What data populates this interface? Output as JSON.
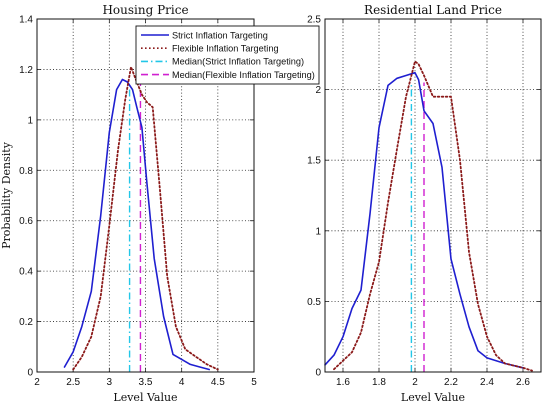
{
  "chart_data": [
    {
      "type": "line",
      "title": "Housing Price",
      "xlabel": "Level Value",
      "ylabel": "Probability Density",
      "xlim": [
        2,
        5
      ],
      "ylim": [
        0,
        1.4
      ],
      "xticks": [
        "2",
        "2.5",
        "3",
        "3.5",
        "4",
        "4.5",
        "5"
      ],
      "yticks": [
        "0",
        "0.2",
        "0.4",
        "0.6",
        "0.8",
        "1",
        "1.2",
        "1.4"
      ],
      "grid": "dotted",
      "legend_position": "top-right",
      "series": [
        {
          "name": "Strict Inflation Targeting",
          "color": "#1f1fd0",
          "style": "solid",
          "x": [
            2.38,
            2.5,
            2.62,
            2.75,
            2.88,
            3.0,
            3.1,
            3.18,
            3.25,
            3.32,
            3.38,
            3.45,
            3.52,
            3.62,
            3.75,
            3.88,
            4.0,
            4.12,
            4.25,
            4.38
          ],
          "y": [
            0.02,
            0.08,
            0.18,
            0.32,
            0.62,
            0.95,
            1.12,
            1.16,
            1.15,
            1.12,
            1.05,
            0.97,
            0.75,
            0.45,
            0.22,
            0.07,
            0.05,
            0.03,
            0.02,
            0.01
          ]
        },
        {
          "name": "Flexible Inflation Targeting",
          "color": "#8b1a1a",
          "style": "dotted",
          "x": [
            2.5,
            2.62,
            2.75,
            2.88,
            3.0,
            3.12,
            3.22,
            3.3,
            3.38,
            3.45,
            3.52,
            3.6,
            3.7,
            3.8,
            3.92,
            4.05,
            4.2,
            4.35,
            4.5
          ],
          "y": [
            0.01,
            0.06,
            0.14,
            0.3,
            0.58,
            0.88,
            1.08,
            1.21,
            1.15,
            1.1,
            1.07,
            1.05,
            0.72,
            0.38,
            0.18,
            0.09,
            0.06,
            0.03,
            0.01
          ]
        }
      ],
      "medians": [
        {
          "name": "Median(Strict Inflation Targeting)",
          "x": 3.28,
          "color": "#22c7e8",
          "style": "dashdot"
        },
        {
          "name": "Median(Flexible Inflation Targeting)",
          "x": 3.43,
          "color": "#d020d0",
          "style": "dashed"
        }
      ]
    },
    {
      "type": "line",
      "title": "Residential Land Price",
      "xlabel": "Level Value",
      "ylabel": "",
      "xlim": [
        1.5,
        2.7
      ],
      "ylim": [
        0,
        2.5
      ],
      "xticks": [
        "1.6",
        "1.8",
        "2",
        "2.2",
        "2.4",
        "2.6"
      ],
      "yticks": [
        "0",
        "0.5",
        "1",
        "1.5",
        "2",
        "2.5"
      ],
      "grid": "dotted",
      "series": [
        {
          "name": "Strict Inflation Targeting",
          "color": "#1f1fd0",
          "style": "solid",
          "x": [
            1.5,
            1.55,
            1.6,
            1.65,
            1.7,
            1.75,
            1.8,
            1.85,
            1.9,
            1.95,
            2.0,
            2.02,
            2.05,
            2.1,
            2.15,
            2.2,
            2.25,
            2.3,
            2.35,
            2.4,
            2.5,
            2.6
          ],
          "y": [
            0.05,
            0.12,
            0.25,
            0.45,
            0.58,
            1.12,
            1.73,
            2.03,
            2.08,
            2.1,
            2.12,
            2.07,
            1.85,
            1.76,
            1.45,
            0.8,
            0.55,
            0.32,
            0.15,
            0.1,
            0.06,
            0.03
          ]
        },
        {
          "name": "Flexible Inflation Targeting",
          "color": "#8b1a1a",
          "style": "dotted",
          "x": [
            1.55,
            1.6,
            1.65,
            1.7,
            1.75,
            1.8,
            1.85,
            1.9,
            1.95,
            2.0,
            2.02,
            2.05,
            2.1,
            2.15,
            2.2,
            2.25,
            2.3,
            2.35,
            2.4,
            2.45,
            2.5,
            2.6,
            2.65
          ],
          "y": [
            0.02,
            0.08,
            0.14,
            0.28,
            0.55,
            0.78,
            1.2,
            1.58,
            1.95,
            2.2,
            2.18,
            2.1,
            1.95,
            1.95,
            1.95,
            1.5,
            0.85,
            0.48,
            0.25,
            0.12,
            0.06,
            0.03,
            0.01
          ]
        }
      ],
      "medians": [
        {
          "name": "Median(Strict Inflation Targeting)",
          "x": 1.98,
          "color": "#22c7e8",
          "style": "dashdot"
        },
        {
          "name": "Median(Flexible Inflation Targeting)",
          "x": 2.05,
          "color": "#d020d0",
          "style": "dashed"
        }
      ]
    }
  ]
}
